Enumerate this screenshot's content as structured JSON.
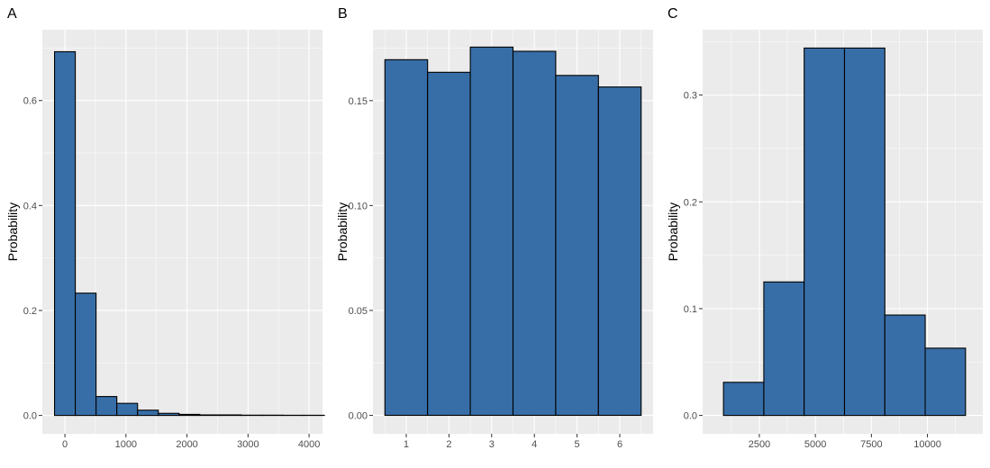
{
  "colors": {
    "panel_bg": "#ebebeb",
    "grid_major": "#ffffff",
    "bar_fill": "#386ea7",
    "bar_stroke": "#000000",
    "tick_text": "#4d4d4d",
    "tick_mark": "#333333"
  },
  "chart_data": [
    {
      "type": "bar",
      "tag": "A",
      "title": "",
      "xlabel": "",
      "ylabel": "Probability",
      "grid": true,
      "xlim": [
        -370,
        4220
      ],
      "ylim": [
        -0.035,
        0.735
      ],
      "xticks": [
        0,
        1000,
        2000,
        3000,
        4000
      ],
      "xtick_labels": [
        "0",
        "1000",
        "2000",
        "3000",
        "4000"
      ],
      "yticks": [
        0.0,
        0.2,
        0.4,
        0.6
      ],
      "ytick_labels": [
        "0.0",
        "0.2",
        "0.4",
        "0.6"
      ],
      "bins": [
        {
          "x0": -170,
          "x1": 170,
          "value": 0.693
        },
        {
          "x0": 170,
          "x1": 510,
          "value": 0.233
        },
        {
          "x0": 510,
          "x1": 850,
          "value": 0.036
        },
        {
          "x0": 850,
          "x1": 1190,
          "value": 0.023
        },
        {
          "x0": 1190,
          "x1": 1530,
          "value": 0.01
        },
        {
          "x0": 1530,
          "x1": 1870,
          "value": 0.004
        },
        {
          "x0": 1870,
          "x1": 2210,
          "value": 0.002
        },
        {
          "x0": 2210,
          "x1": 2550,
          "value": 0.001
        },
        {
          "x0": 2550,
          "x1": 2890,
          "value": 0.001
        },
        {
          "x0": 2890,
          "x1": 3230,
          "value": 0.0005
        },
        {
          "x0": 3230,
          "x1": 3570,
          "value": 0.0005
        },
        {
          "x0": 3570,
          "x1": 3910,
          "value": 0.0003
        },
        {
          "x0": 3910,
          "x1": 4250,
          "value": 0.0003
        }
      ]
    },
    {
      "type": "bar",
      "tag": "B",
      "title": "",
      "xlabel": "",
      "ylabel": "Probability",
      "grid": true,
      "xlim": [
        0.22,
        6.78
      ],
      "ylim": [
        -0.0088,
        0.1838
      ],
      "xticks": [
        1,
        2,
        3,
        4,
        5,
        6
      ],
      "xtick_labels": [
        "1",
        "2",
        "3",
        "4",
        "5",
        "6"
      ],
      "yticks": [
        0.0,
        0.05,
        0.1,
        0.15
      ],
      "ytick_labels": [
        "0.00",
        "0.05",
        "0.10",
        "0.15"
      ],
      "bins": [
        {
          "x0": 0.5,
          "x1": 1.5,
          "value": 0.1695
        },
        {
          "x0": 1.5,
          "x1": 2.5,
          "value": 0.1635
        },
        {
          "x0": 2.5,
          "x1": 3.5,
          "value": 0.1755
        },
        {
          "x0": 3.5,
          "x1": 4.5,
          "value": 0.1735
        },
        {
          "x0": 4.5,
          "x1": 5.5,
          "value": 0.162
        },
        {
          "x0": 5.5,
          "x1": 6.5,
          "value": 0.1565
        }
      ]
    },
    {
      "type": "bar",
      "tag": "C",
      "title": "",
      "xlabel": "",
      "ylabel": "Probability",
      "grid": true,
      "xlim": [
        -30,
        12470
      ],
      "ylim": [
        -0.0172,
        0.3612
      ],
      "xticks": [
        2500,
        5000,
        7500,
        10000
      ],
      "xtick_labels": [
        "2500",
        "5000",
        "7500",
        "10000"
      ],
      "yticks": [
        0.0,
        0.1,
        0.2,
        0.3
      ],
      "ytick_labels": [
        "0.0",
        "0.1",
        "0.2",
        "0.3"
      ],
      "bins": [
        {
          "x0": 900,
          "x1": 2700,
          "value": 0.031
        },
        {
          "x0": 2700,
          "x1": 4500,
          "value": 0.125
        },
        {
          "x0": 4500,
          "x1": 6300,
          "value": 0.344
        },
        {
          "x0": 6300,
          "x1": 8100,
          "value": 0.344
        },
        {
          "x0": 8100,
          "x1": 9900,
          "value": 0.094
        },
        {
          "x0": 9900,
          "x1": 11700,
          "value": 0.063
        }
      ]
    }
  ]
}
